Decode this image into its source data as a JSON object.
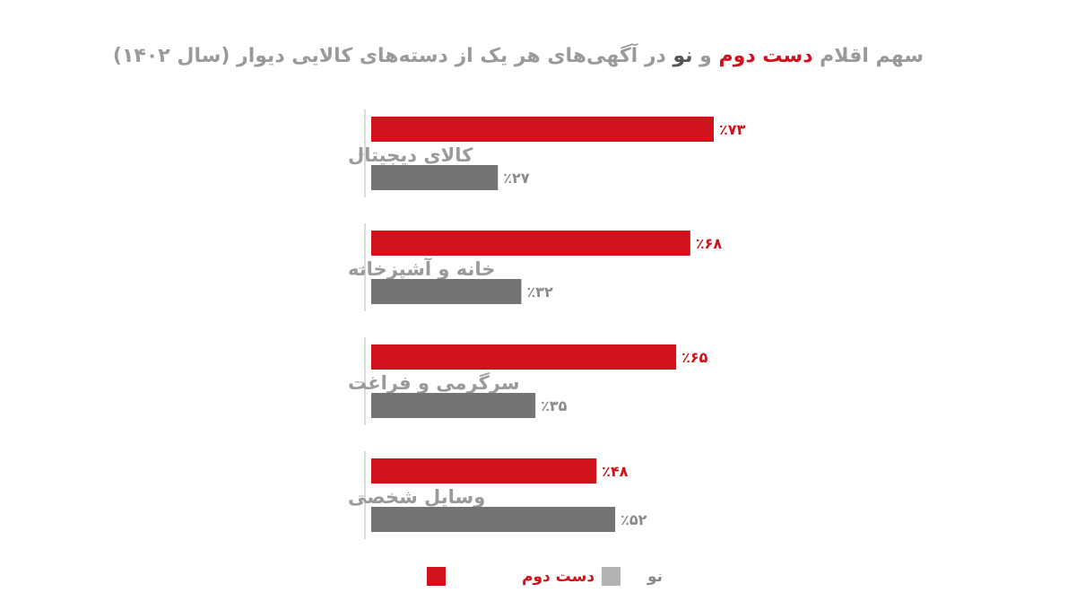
{
  "title": {
    "part1": "سهم اقلام ",
    "used": "دست دوم",
    "part2": " و ",
    "new": "نو",
    "part3": " در آگهی‌های هر یک از دسته‌های کالایی دیوار (سال ۱۴۰۲)"
  },
  "colors": {
    "used": "#d0121b",
    "new": "#767374",
    "new_label": "#8a8a8a",
    "axis": "#cfcfcf",
    "legend_new": "#b3b3b3"
  },
  "chart_data": {
    "type": "bar",
    "orientation": "horizontal",
    "categories": [
      "کالای دیجیتال",
      "خانه و آشپزخانه",
      "سرگرمی و فراغت",
      "وسایل شخصی"
    ],
    "series": [
      {
        "name": "دست دوم",
        "values": [
          73,
          68,
          65,
          48
        ],
        "labels": [
          "٪۷۳",
          "٪۶۸",
          "٪۶۵",
          "٪۴۸"
        ]
      },
      {
        "name": "نو",
        "values": [
          27,
          32,
          35,
          52
        ],
        "labels": [
          "٪۲۷",
          "٪۳۲",
          "٪۳۵",
          "٪۵۲"
        ]
      }
    ],
    "xlim": [
      0,
      73
    ],
    "grid": false,
    "legend_position": "bottom"
  }
}
